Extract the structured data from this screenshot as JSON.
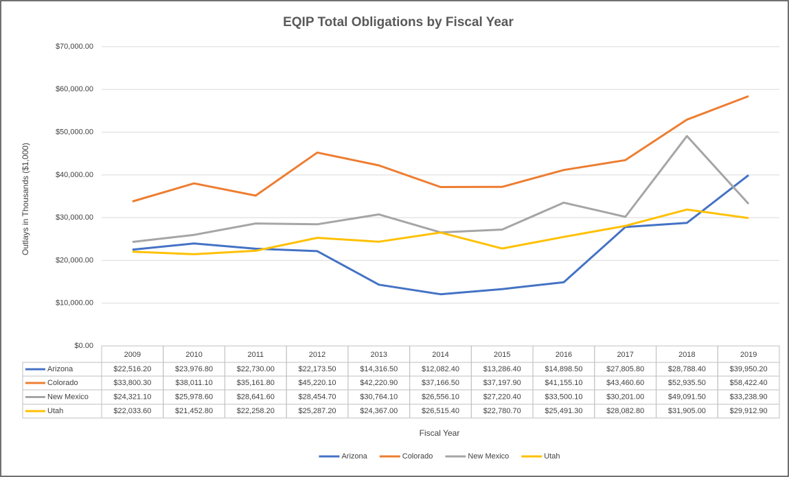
{
  "chart_data": {
    "type": "line",
    "title": "EQIP Total Obligations by Fiscal Year",
    "x_label": "Fiscal Year",
    "y_label": "Outlays in Thousands ($1,000)",
    "categories": [
      "2009",
      "2010",
      "2011",
      "2012",
      "2013",
      "2014",
      "2015",
      "2016",
      "2017",
      "2018",
      "2019"
    ],
    "series": [
      {
        "name": "Arizona",
        "color": "#4472c4",
        "values": [
          22516.2,
          23976.8,
          22730.0,
          22173.5,
          14316.5,
          12082.4,
          13286.4,
          14898.5,
          27805.8,
          28788.4,
          39950.2
        ],
        "value_labels": [
          "$22,516.20",
          "$23,976.80",
          "$22,730.00",
          "$22,173.50",
          "$14,316.50",
          "$12,082.40",
          "$13,286.40",
          "$14,898.50",
          "$27,805.80",
          "$28,788.40",
          "$39,950.20"
        ]
      },
      {
        "name": "Colorado",
        "color": "#ed7d31",
        "values": [
          33800.3,
          38011.1,
          35161.8,
          45220.1,
          42220.9,
          37166.5,
          37197.9,
          41155.1,
          43460.6,
          52935.5,
          58422.4
        ],
        "value_labels": [
          "$33,800.30",
          "$38,011.10",
          "$35,161.80",
          "$45,220.10",
          "$42,220.90",
          "$37,166.50",
          "$37,197.90",
          "$41,155.10",
          "$43,460.60",
          "$52,935.50",
          "$58,422.40"
        ]
      },
      {
        "name": "New Mexico",
        "color": "#a5a5a5",
        "values": [
          24321.1,
          25978.6,
          28641.6,
          28454.7,
          30764.1,
          26556.1,
          27220.4,
          33500.1,
          30201.0,
          49091.5,
          33238.9
        ],
        "value_labels": [
          "$24,321.10",
          "$25,978.60",
          "$28,641.60",
          "$28,454.70",
          "$30,764.10",
          "$26,556.10",
          "$27,220.40",
          "$33,500.10",
          "$30,201.00",
          "$49,091.50",
          "$33,238.90"
        ]
      },
      {
        "name": "Utah",
        "color": "#ffc000",
        "values": [
          22033.6,
          21452.8,
          22258.2,
          25287.2,
          24367.0,
          26515.4,
          22780.7,
          25491.3,
          28082.8,
          31905.0,
          29912.9
        ],
        "value_labels": [
          "$22,033.60",
          "$21,452.80",
          "$22,258.20",
          "$25,287.20",
          "$24,367.00",
          "$26,515.40",
          "$22,780.70",
          "$25,491.30",
          "$28,082.80",
          "$31,905.00",
          "$29,912.90"
        ]
      }
    ],
    "ylim": [
      0,
      70000
    ],
    "yticks": [
      {
        "value": 0,
        "label": "$0.00"
      },
      {
        "value": 10000,
        "label": "$10,000.00"
      },
      {
        "value": 20000,
        "label": "$20,000.00"
      },
      {
        "value": 30000,
        "label": "$30,000.00"
      },
      {
        "value": 40000,
        "label": "$40,000.00"
      },
      {
        "value": 50000,
        "label": "$50,000.00"
      },
      {
        "value": 60000,
        "label": "$60,000.00"
      },
      {
        "value": 70000,
        "label": "$70,000.00"
      }
    ],
    "grid": true,
    "legend": "bottom"
  }
}
